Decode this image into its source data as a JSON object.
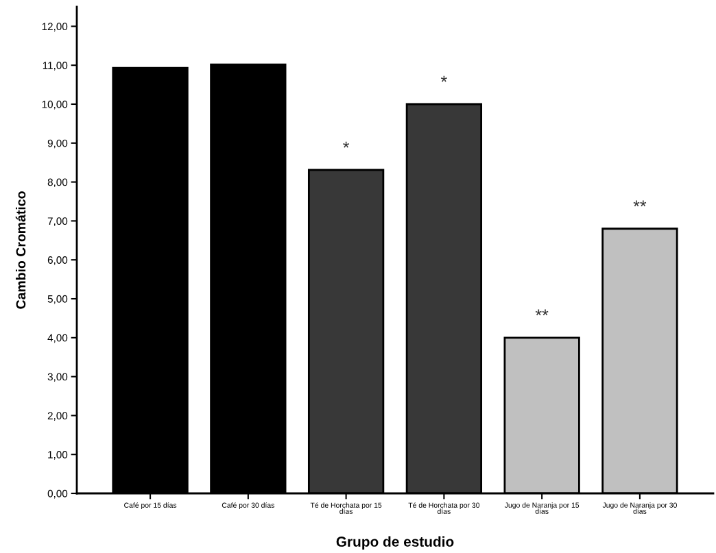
{
  "chart_data": {
    "type": "bar",
    "xlabel": "Grupo de estudio",
    "ylabel": "Cambio Cromático",
    "categories": [
      "Café por 15 días",
      "Café por 30 días",
      "Té de Horchata por 15\ndías",
      "Té de Horchata por 30\ndías",
      "Jugo de Naranja por 15\ndías",
      "Jugo de Naranja por 30\ndías"
    ],
    "values": [
      10.93,
      11.02,
      8.31,
      10.0,
      4.0,
      6.8
    ],
    "colors": [
      "#000000",
      "#000000",
      "#383838",
      "#383838",
      "#c0c0c0",
      "#c0c0c0"
    ],
    "ylim": [
      0,
      12.5
    ],
    "yticks": [
      {
        "value": 0,
        "label": "0,00"
      },
      {
        "value": 1,
        "label": "1,00"
      },
      {
        "value": 2,
        "label": "2,00"
      },
      {
        "value": 3,
        "label": "3,00"
      },
      {
        "value": 4,
        "label": "4,00"
      },
      {
        "value": 5,
        "label": "5,00"
      },
      {
        "value": 6,
        "label": "6,00"
      },
      {
        "value": 7,
        "label": "7,00"
      },
      {
        "value": 8,
        "label": "8,00"
      },
      {
        "value": 9,
        "label": "9,00"
      },
      {
        "value": 10,
        "label": "10,00"
      },
      {
        "value": 11,
        "label": "11,00"
      },
      {
        "value": 12,
        "label": "12,00"
      }
    ],
    "annotations": [
      {
        "text": "*",
        "x": "Té de Horchata por 15\ndías",
        "y": 8.31
      },
      {
        "text": "*",
        "x": "Té de Horchata por 30\ndías",
        "y": 10.0
      },
      {
        "text": "**",
        "x": "Jugo de Naranja por 15\ndías",
        "y": 4.0
      },
      {
        "text": "**",
        "x": "Jugo de Naranja por 30\ndías",
        "y": 6.8
      }
    ],
    "grid": false,
    "legend": false
  }
}
